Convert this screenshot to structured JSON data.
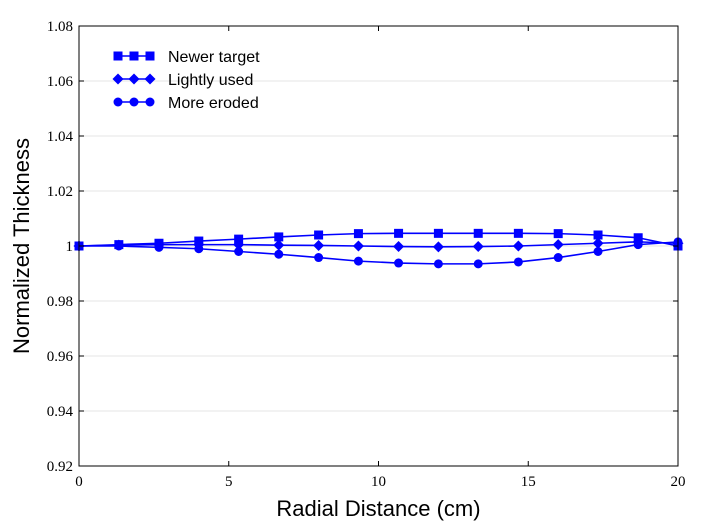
{
  "chart_data": {
    "type": "line",
    "xlabel": "Radial Distance (cm)",
    "ylabel": "Normalized Thickness",
    "xlim": [
      0,
      20
    ],
    "ylim": [
      0.92,
      1.08
    ],
    "xticks": [
      0,
      5,
      10,
      15,
      20
    ],
    "xtick_labels": [
      "0",
      "5",
      "10",
      "15",
      "20"
    ],
    "yticks": [
      0.92,
      0.94,
      0.96,
      0.98,
      1.0,
      1.02,
      1.04,
      1.06,
      1.08
    ],
    "ytick_labels": [
      "0.92",
      "0.94",
      "0.96",
      "0.98",
      "1",
      "1.02",
      "1.04",
      "1.06",
      "1.08"
    ],
    "grid": "horizontal",
    "legend_position": "top-left",
    "color": "#0000ff",
    "x": [
      0,
      1.33,
      2.67,
      4.0,
      5.33,
      6.67,
      8.0,
      9.33,
      10.67,
      12.0,
      13.33,
      14.67,
      16.0,
      17.33,
      18.67,
      20.0
    ],
    "series": [
      {
        "name": "Newer target",
        "marker": "square",
        "values": [
          1.0,
          1.0005,
          1.001,
          1.0018,
          1.0025,
          1.0033,
          1.004,
          1.0045,
          1.0046,
          1.0046,
          1.0046,
          1.0046,
          1.0045,
          1.004,
          1.003,
          1.0
        ]
      },
      {
        "name": "Lightly used",
        "marker": "diamond",
        "values": [
          1.0,
          1.0003,
          1.0005,
          1.0005,
          1.0005,
          1.0003,
          1.0002,
          1.0,
          0.9998,
          0.9997,
          0.9998,
          1.0,
          1.0005,
          1.001,
          1.0015,
          1.001
        ]
      },
      {
        "name": "More eroded",
        "marker": "circle",
        "values": [
          1.0,
          1.0,
          0.9995,
          0.999,
          0.998,
          0.997,
          0.9958,
          0.9945,
          0.9938,
          0.9935,
          0.9935,
          0.9942,
          0.9958,
          0.998,
          1.0005,
          1.0015
        ]
      }
    ]
  }
}
